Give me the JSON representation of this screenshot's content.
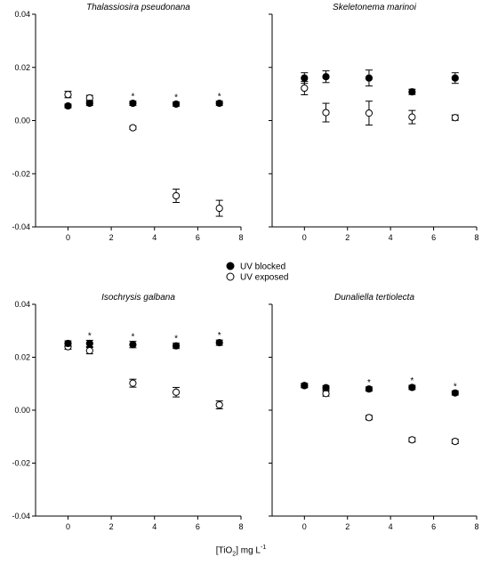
{
  "x_label": {
    "pre": "[TiO",
    "sub": "2",
    "post": "] mg L",
    "sup": "-1"
  },
  "legend": [
    {
      "label": "UV blocked",
      "marker": "filled"
    },
    {
      "label": "UV exposed",
      "marker": "open"
    }
  ],
  "chart_data": [
    {
      "type": "scatter",
      "title": "Thalassiosira pseudonana",
      "xlim": [
        -1.5,
        8
      ],
      "ylim": [
        -0.04,
        0.04
      ],
      "xticks": [
        0,
        2,
        4,
        6,
        8
      ],
      "yticks": [
        -0.04,
        -0.02,
        0.0,
        0.02,
        0.04
      ],
      "ytick_labels": [
        "-0.04",
        "-0.02",
        "0.00",
        "0.02",
        "0.04"
      ],
      "show_y_labels": true,
      "significance_x": [
        3,
        5,
        7
      ],
      "series": [
        {
          "name": "UV blocked",
          "marker": "filled",
          "points": [
            {
              "x": 0,
              "y": 0.0055,
              "err": 0.0007
            },
            {
              "x": 1,
              "y": 0.0065,
              "err": 0.0008
            },
            {
              "x": 3,
              "y": 0.0065,
              "err": 0.0008
            },
            {
              "x": 5,
              "y": 0.0062,
              "err": 0.0008
            },
            {
              "x": 7,
              "y": 0.0065,
              "err": 0.0008
            }
          ]
        },
        {
          "name": "UV exposed",
          "marker": "open",
          "points": [
            {
              "x": 0,
              "y": 0.0098,
              "err": 0.0012
            },
            {
              "x": 1,
              "y": 0.0085,
              "err": 0.001
            },
            {
              "x": 3,
              "y": -0.0027,
              "err": 0.0006
            },
            {
              "x": 5,
              "y": -0.0283,
              "err": 0.0025
            },
            {
              "x": 7,
              "y": -0.033,
              "err": 0.003
            }
          ]
        }
      ]
    },
    {
      "type": "scatter",
      "title": "Skeletonema marinoi",
      "xlim": [
        -1.5,
        8
      ],
      "ylim": [
        -0.04,
        0.04
      ],
      "xticks": [
        0,
        2,
        4,
        6,
        8
      ],
      "yticks": [
        -0.04,
        -0.02,
        0.0,
        0.02,
        0.04
      ],
      "ytick_labels": [
        "-0.04",
        "-0.02",
        "0.00",
        "0.02",
        "0.04"
      ],
      "show_y_labels": false,
      "significance_x": [],
      "series": [
        {
          "name": "UV blocked",
          "marker": "filled",
          "points": [
            {
              "x": 0,
              "y": 0.016,
              "err": 0.002
            },
            {
              "x": 1,
              "y": 0.0165,
              "err": 0.0022
            },
            {
              "x": 3,
              "y": 0.016,
              "err": 0.003
            },
            {
              "x": 5,
              "y": 0.0108,
              "err": 0.001
            },
            {
              "x": 7,
              "y": 0.016,
              "err": 0.002
            }
          ]
        },
        {
          "name": "UV exposed",
          "marker": "open",
          "points": [
            {
              "x": 0,
              "y": 0.0122,
              "err": 0.0025
            },
            {
              "x": 1,
              "y": 0.003,
              "err": 0.0035
            },
            {
              "x": 3,
              "y": 0.0028,
              "err": 0.0045
            },
            {
              "x": 5,
              "y": 0.0013,
              "err": 0.0025
            },
            {
              "x": 7,
              "y": 0.0011,
              "err": 0.001
            }
          ]
        }
      ]
    },
    {
      "type": "scatter",
      "title": "Isochrysis galbana",
      "xlim": [
        -1.5,
        8
      ],
      "ylim": [
        -0.04,
        0.04
      ],
      "xticks": [
        0,
        2,
        4,
        6,
        8
      ],
      "yticks": [
        -0.04,
        -0.02,
        0.0,
        0.02,
        0.04
      ],
      "ytick_labels": [
        "-0.04",
        "-0.02",
        "0.00",
        "0.02",
        "0.04"
      ],
      "show_y_labels": true,
      "significance_x": [
        1,
        3,
        5,
        7
      ],
      "series": [
        {
          "name": "UV blocked",
          "marker": "filled",
          "points": [
            {
              "x": 0,
              "y": 0.0252,
              "err": 0.001
            },
            {
              "x": 1,
              "y": 0.0252,
              "err": 0.0012
            },
            {
              "x": 3,
              "y": 0.0248,
              "err": 0.0012
            },
            {
              "x": 5,
              "y": 0.0243,
              "err": 0.001
            },
            {
              "x": 7,
              "y": 0.0255,
              "err": 0.001
            }
          ]
        },
        {
          "name": "UV exposed",
          "marker": "open",
          "points": [
            {
              "x": 0,
              "y": 0.024,
              "err": 0.001
            },
            {
              "x": 1,
              "y": 0.0225,
              "err": 0.0012
            },
            {
              "x": 3,
              "y": 0.0102,
              "err": 0.0015
            },
            {
              "x": 5,
              "y": 0.0068,
              "err": 0.0018
            },
            {
              "x": 7,
              "y": 0.002,
              "err": 0.0015
            }
          ]
        }
      ]
    },
    {
      "type": "scatter",
      "title": "Dunaliella tertiolecta",
      "xlim": [
        -1.5,
        8
      ],
      "ylim": [
        -0.04,
        0.04
      ],
      "xticks": [
        0,
        2,
        4,
        6,
        8
      ],
      "yticks": [
        -0.04,
        -0.02,
        0.0,
        0.02,
        0.04
      ],
      "ytick_labels": [
        "-0.04",
        "-0.02",
        "0.00",
        "0.02",
        "0.04"
      ],
      "show_y_labels": false,
      "significance_x": [
        3,
        5,
        7
      ],
      "series": [
        {
          "name": "UV blocked",
          "marker": "filled",
          "points": [
            {
              "x": 0,
              "y": 0.0093,
              "err": 0.0008
            },
            {
              "x": 1,
              "y": 0.0085,
              "err": 0.0008
            },
            {
              "x": 3,
              "y": 0.008,
              "err": 0.0008
            },
            {
              "x": 5,
              "y": 0.0086,
              "err": 0.0008
            },
            {
              "x": 7,
              "y": 0.0065,
              "err": 0.0008
            }
          ]
        },
        {
          "name": "UV exposed",
          "marker": "open",
          "points": [
            {
              "x": 0,
              "y": 0.0093,
              "err": 0.0008
            },
            {
              "x": 1,
              "y": 0.0063,
              "err": 0.001
            },
            {
              "x": 3,
              "y": -0.0028,
              "err": 0.0008
            },
            {
              "x": 5,
              "y": -0.0112,
              "err": 0.0008
            },
            {
              "x": 7,
              "y": -0.0118,
              "err": 0.0008
            }
          ]
        }
      ]
    }
  ]
}
